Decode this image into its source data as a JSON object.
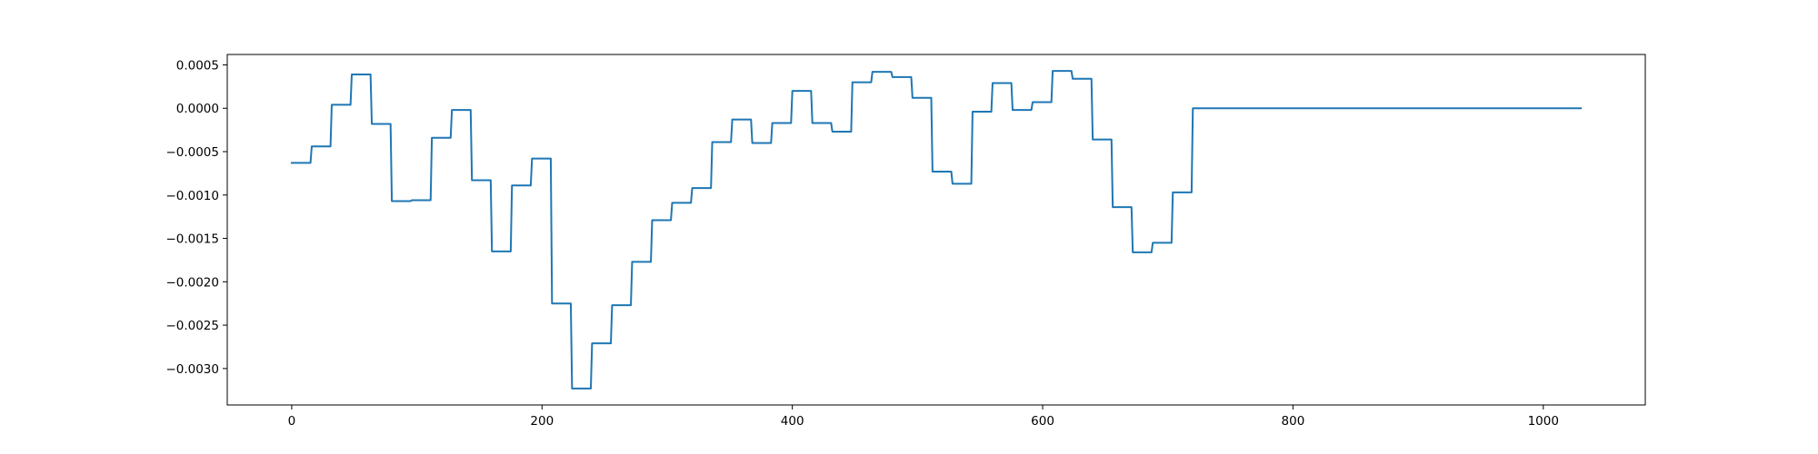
{
  "chart_data": {
    "type": "line",
    "title": "",
    "xlabel": "",
    "ylabel": "",
    "xlim": [
      -51.5,
      1081.5
    ],
    "ylim": [
      -0.00342,
      0.00062
    ],
    "grid": false,
    "legend": "none",
    "series_color": "#1f77b4",
    "step_width": 16,
    "x_end": 1030,
    "steps": [
      -0.00063,
      -0.00044,
      4e-05,
      0.00039,
      -0.00018,
      -0.00107,
      -0.00106,
      -0.00034,
      -2e-05,
      -0.00083,
      -0.00165,
      -0.00089,
      -0.00058,
      -0.00225,
      -0.00323,
      -0.00271,
      -0.00227,
      -0.00177,
      -0.00129,
      -0.00109,
      -0.00092,
      -0.00039,
      -0.00013,
      -0.0004,
      -0.00017,
      0.0002,
      -0.00017,
      -0.00027,
      0.0003,
      0.00042,
      0.00036,
      0.00012,
      -0.00073,
      -0.00087,
      -4e-05,
      0.00029,
      -2e-05,
      7e-05,
      0.00043,
      0.00034,
      -0.00036,
      -0.00114,
      -0.00166,
      -0.00155,
      -0.00097,
      0.0
    ],
    "xticks": [
      {
        "value": 0,
        "label": "0"
      },
      {
        "value": 200,
        "label": "200"
      },
      {
        "value": 400,
        "label": "400"
      },
      {
        "value": 600,
        "label": "600"
      },
      {
        "value": 800,
        "label": "800"
      },
      {
        "value": 1000,
        "label": "1000"
      }
    ],
    "yticks": [
      {
        "value": 0.0005,
        "label": "0.0005"
      },
      {
        "value": 0.0,
        "label": "0.0000"
      },
      {
        "value": -0.0005,
        "label": "−0.0005"
      },
      {
        "value": -0.001,
        "label": "−0.0010"
      },
      {
        "value": -0.0015,
        "label": "−0.0015"
      },
      {
        "value": -0.002,
        "label": "−0.0020"
      },
      {
        "value": -0.0025,
        "label": "−0.0025"
      },
      {
        "value": -0.003,
        "label": "−0.0030"
      }
    ]
  }
}
